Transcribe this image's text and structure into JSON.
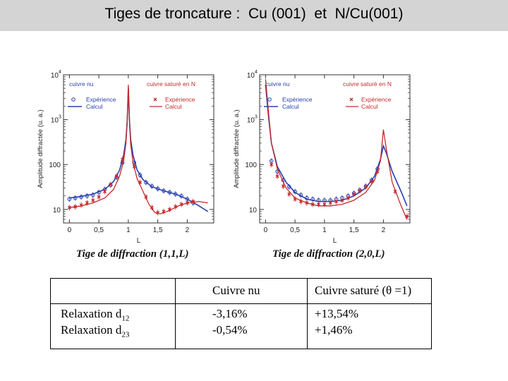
{
  "slide": {
    "title": "Tiges de troncature :  Cu (001)  et  N/Cu(001)"
  },
  "chart_data": [
    {
      "type": "scatter",
      "caption": "Tige de diffraction (1,1,L)",
      "xlabel": "L",
      "ylabel": "Amplitude diffractée (u. a.)",
      "xlim": [
        -0.1,
        2.45
      ],
      "ylim": [
        5,
        10000
      ],
      "yscale": "log",
      "xticks": [
        {
          "v": 0,
          "label": "0"
        },
        {
          "v": 0.5,
          "label": "0,5"
        },
        {
          "v": 1,
          "label": "1"
        },
        {
          "v": 1.5,
          "label": "1,5"
        },
        {
          "v": 2,
          "label": "2"
        }
      ],
      "yticks": [
        {
          "v": 10,
          "label": "10"
        },
        {
          "v": 100,
          "label": "100"
        },
        {
          "v": 1000,
          "label": "10",
          "sup": "3"
        },
        {
          "v": 10000,
          "label": "10",
          "sup": "4"
        }
      ],
      "legend_left": {
        "title": "cuivre nu",
        "exp": "Expérience",
        "calc": "Calcul"
      },
      "legend_right": {
        "title": "cuivre saturé en N",
        "exp": "Expérience",
        "calc": "Calcul"
      },
      "colors": {
        "nu": "#2b3fae",
        "sat": "#c62a2a"
      },
      "series": [
        {
          "group": "nu",
          "kind": "calc",
          "x": [
            0,
            0.2,
            0.4,
            0.6,
            0.75,
            0.85,
            0.92,
            0.96,
            0.98,
            1.0,
            1.02,
            1.04,
            1.08,
            1.15,
            1.25,
            1.4,
            1.6,
            1.8,
            2.0,
            2.2,
            2.35
          ],
          "y": [
            18,
            19.5,
            22,
            28,
            42,
            75,
            160,
            360,
            900,
            5000,
            900,
            360,
            160,
            75,
            46,
            32,
            26,
            22,
            17,
            12,
            9
          ]
        },
        {
          "group": "nu",
          "kind": "exp",
          "x": [
            0,
            0.1,
            0.2,
            0.3,
            0.4,
            0.5,
            0.6,
            0.7,
            0.8,
            0.9,
            1.1,
            1.2,
            1.3,
            1.4,
            1.5,
            1.6,
            1.7,
            1.8,
            1.9,
            2.0,
            2.1
          ],
          "y": [
            17,
            18,
            19,
            20,
            21,
            24,
            28,
            35,
            52,
            110,
            110,
            58,
            40,
            33,
            29,
            26,
            24,
            22,
            20,
            17,
            14
          ]
        },
        {
          "group": "sat",
          "kind": "calc",
          "x": [
            0,
            0.2,
            0.4,
            0.6,
            0.75,
            0.85,
            0.92,
            0.96,
            0.98,
            1.0,
            1.02,
            1.04,
            1.08,
            1.15,
            1.25,
            1.35,
            1.45,
            1.55,
            1.7,
            1.85,
            2.0,
            2.2,
            2.35
          ],
          "y": [
            11,
            12,
            14,
            18,
            28,
            55,
            120,
            300,
            800,
            6000,
            800,
            280,
            110,
            48,
            25,
            13,
            8.5,
            8,
            9.5,
            12,
            14,
            15,
            14
          ]
        },
        {
          "group": "sat",
          "kind": "exp",
          "x": [
            0,
            0.1,
            0.2,
            0.3,
            0.4,
            0.5,
            0.6,
            0.7,
            0.8,
            0.9,
            1.1,
            1.2,
            1.3,
            1.4,
            1.5,
            1.6,
            1.7,
            1.8,
            1.9,
            2.0,
            2.1
          ],
          "y": [
            11,
            11.5,
            12.5,
            14,
            16,
            19,
            25,
            36,
            55,
            130,
            90,
            40,
            19,
            11,
            8.5,
            9,
            10,
            11.5,
            13,
            14,
            15
          ]
        }
      ]
    },
    {
      "type": "scatter",
      "caption": "Tige de diffraction (2,0,L)",
      "xlabel": "L",
      "ylabel": "Amplitude diffractée (u. a.)",
      "xlim": [
        -0.1,
        2.45
      ],
      "ylim": [
        5,
        10000
      ],
      "yscale": "log",
      "xticks": [
        {
          "v": 0,
          "label": "0"
        },
        {
          "v": 0.5,
          "label": "0,5"
        },
        {
          "v": 1,
          "label": "1"
        },
        {
          "v": 1.5,
          "label": "1,5"
        },
        {
          "v": 2,
          "label": "2"
        }
      ],
      "yticks": [
        {
          "v": 10,
          "label": "10"
        },
        {
          "v": 100,
          "label": "100"
        },
        {
          "v": 1000,
          "label": "10",
          "sup": "3"
        },
        {
          "v": 10000,
          "label": "10",
          "sup": "4"
        }
      ],
      "legend_left": {
        "title": "cuivre nu",
        "exp": "Expérience",
        "calc": "Calcul"
      },
      "legend_right": {
        "title": "cuivre saturé en N",
        "exp": "Expérience",
        "calc": "Calcul"
      },
      "colors": {
        "nu": "#2b3fae",
        "sat": "#c62a2a"
      },
      "series": [
        {
          "group": "nu",
          "kind": "calc",
          "x": [
            0,
            0.05,
            0.1,
            0.2,
            0.35,
            0.5,
            0.7,
            0.9,
            1.1,
            1.3,
            1.5,
            1.7,
            1.85,
            1.95,
            2.0,
            2.05,
            2.15,
            2.3,
            2.4
          ],
          "y": [
            6000,
            1200,
            300,
            90,
            40,
            24,
            17,
            15,
            15,
            16,
            20,
            30,
            55,
            130,
            260,
            180,
            70,
            25,
            12
          ]
        },
        {
          "group": "nu",
          "kind": "exp",
          "x": [
            0.1,
            0.2,
            0.3,
            0.4,
            0.5,
            0.6,
            0.7,
            0.8,
            0.9,
            1.0,
            1.1,
            1.2,
            1.3,
            1.4,
            1.5,
            1.6,
            1.7,
            1.8,
            1.9
          ],
          "y": [
            120,
            70,
            45,
            32,
            25,
            21,
            18,
            17,
            16,
            16,
            16,
            17,
            18,
            20,
            23,
            27,
            33,
            45,
            80
          ]
        },
        {
          "group": "sat",
          "kind": "calc",
          "x": [
            0,
            0.05,
            0.1,
            0.2,
            0.35,
            0.5,
            0.7,
            0.9,
            1.1,
            1.3,
            1.5,
            1.7,
            1.85,
            1.95,
            2.0,
            2.05,
            2.15,
            2.3,
            2.4
          ],
          "y": [
            8000,
            1500,
            300,
            80,
            30,
            18,
            14,
            12,
            12,
            13,
            16,
            24,
            45,
            120,
            600,
            220,
            40,
            12,
            6
          ]
        },
        {
          "group": "sat",
          "kind": "exp",
          "x": [
            0.1,
            0.2,
            0.3,
            0.4,
            0.5,
            0.6,
            0.7,
            0.8,
            0.9,
            1.0,
            1.1,
            1.2,
            1.3,
            1.4,
            1.5,
            1.6,
            1.7,
            1.8,
            1.9,
            2.2,
            2.4
          ],
          "y": [
            100,
            55,
            33,
            22,
            17,
            15,
            14,
            13,
            13,
            13,
            14,
            15,
            16,
            18,
            22,
            26,
            32,
            42,
            70,
            25,
            7
          ]
        }
      ]
    }
  ],
  "table": {
    "col_nu": "Cuivre nu",
    "col_sat_prefix": "Cuivre saturé (",
    "theta": "θ",
    "col_sat_suffix": " =1)",
    "row1_label": "Relaxation d",
    "row1_sub": "12",
    "row2_label": "Relaxation d",
    "row2_sub": "23",
    "row1_nu": "-3,16%",
    "row2_nu": "-0,54%",
    "row1_sat": "+13,54%",
    "row2_sat": "+1,46%"
  }
}
